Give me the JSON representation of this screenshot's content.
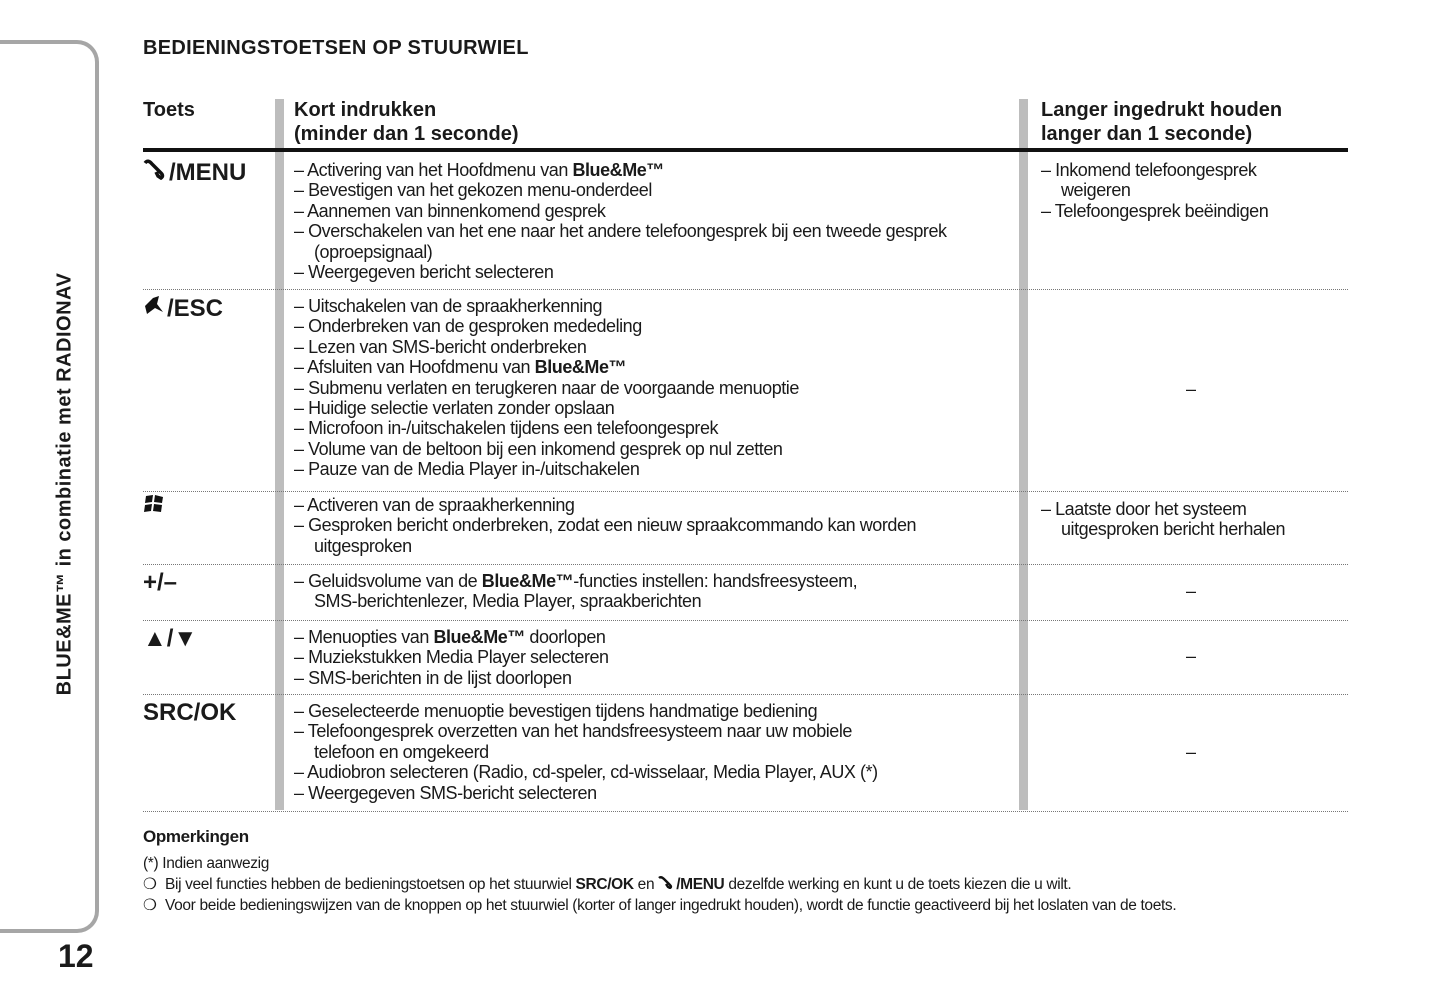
{
  "sidebar": {
    "section_title": "BLUE&ME™ in combinatie met RADIONAV",
    "page_number": "12"
  },
  "title": "BEDIENINGSTOETSEN OP STUURWIEL",
  "table": {
    "headers": {
      "key": "Toets",
      "short": "Kort indrukken\n(minder dan 1 seconde)",
      "long": "Langer ingedrukt houden\nlanger dan 1 seconde)"
    },
    "rows": [
      {
        "key": "/MENU",
        "key_icon": "phone-handset-icon",
        "short": [
          {
            "segs": [
              {
                "t": "– Activering van het Hoofdmenu van "
              },
              {
                "t": "Blue&Me™",
                "b": true
              }
            ]
          },
          {
            "segs": [
              {
                "t": "– Bevestigen van het gekozen menu-onderdeel"
              }
            ]
          },
          {
            "segs": [
              {
                "t": "– Aannemen van binnenkomend gesprek"
              }
            ]
          },
          {
            "segs": [
              {
                "t": "– Overschakelen van het ene naar het andere telefoongesprek bij een tweede gesprek"
              }
            ]
          },
          {
            "cont": true,
            "segs": [
              {
                "t": "(oproepsignaal)"
              }
            ]
          },
          {
            "segs": [
              {
                "t": "– Weergegeven bericht selecteren"
              }
            ]
          }
        ],
        "long": [
          {
            "segs": [
              {
                "t": "– Inkomend telefoongesprek"
              }
            ]
          },
          {
            "cont": true,
            "segs": [
              {
                "t": "weigeren"
              }
            ]
          },
          {
            "segs": [
              {
                "t": "– Telefoongesprek beëindigen"
              }
            ]
          }
        ]
      },
      {
        "key": "/ESC",
        "key_icon": "mute-mic-icon",
        "short": [
          {
            "segs": [
              {
                "t": "– Uitschakelen van de spraakherkenning"
              }
            ]
          },
          {
            "segs": [
              {
                "t": "– Onderbreken van de gesproken mededeling"
              }
            ]
          },
          {
            "segs": [
              {
                "t": "– Lezen van SMS-bericht onderbreken"
              }
            ]
          },
          {
            "segs": [
              {
                "t": "– Afsluiten van Hoofdmenu van "
              },
              {
                "t": "Blue&Me™",
                "b": true
              }
            ]
          },
          {
            "segs": [
              {
                "t": "– Submenu verlaten en terugkeren naar de voorgaande menuoptie"
              }
            ]
          },
          {
            "segs": [
              {
                "t": "– Huidige selectie verlaten zonder opslaan"
              }
            ]
          },
          {
            "segs": [
              {
                "t": "– Microfoon in-/uitschakelen tijdens een telefoongesprek"
              }
            ]
          },
          {
            "segs": [
              {
                "t": "– Volume van de beltoon bij een inkomend gesprek op nul zetten"
              }
            ]
          },
          {
            "segs": [
              {
                "t": "– Pauze van de Media Player in-/uitschakelen"
              }
            ]
          }
        ],
        "long_dash": "–"
      },
      {
        "key": "",
        "key_icon": "voice-recognition-icon",
        "short": [
          {
            "segs": [
              {
                "t": "– Activeren van de spraakherkenning"
              }
            ]
          },
          {
            "segs": [
              {
                "t": "– Gesproken bericht onderbreken, zodat een nieuw spraakcommando kan worden"
              }
            ]
          },
          {
            "cont": true,
            "segs": [
              {
                "t": "uitgesproken"
              }
            ]
          }
        ],
        "long": [
          {
            "segs": [
              {
                "t": "– Laatste door het systeem"
              }
            ]
          },
          {
            "cont": true,
            "segs": [
              {
                "t": "uitgesproken bericht herhalen"
              }
            ]
          }
        ]
      },
      {
        "key": "+/–",
        "short": [
          {
            "segs": [
              {
                "t": "– Geluidsvolume van de "
              },
              {
                "t": "Blue&Me™",
                "b": true
              },
              {
                "t": "-functies instellen: handsfreesysteem,"
              }
            ]
          },
          {
            "cont": true,
            "segs": [
              {
                "t": "SMS-berichtenlezer, Media Player, spraakberichten"
              }
            ]
          }
        ],
        "long_dash": "–"
      },
      {
        "key": "▲/▼",
        "short": [
          {
            "segs": [
              {
                "t": "– Menuopties van "
              },
              {
                "t": "Blue&Me™",
                "b": true
              },
              {
                "t": " doorlopen"
              }
            ]
          },
          {
            "segs": [
              {
                "t": "– Muziekstukken Media Player selecteren"
              }
            ]
          },
          {
            "segs": [
              {
                "t": "– SMS-berichten in de lijst doorlopen"
              }
            ]
          }
        ],
        "long_dash": "–"
      },
      {
        "key": "SRC/OK",
        "short": [
          {
            "segs": [
              {
                "t": "– Geselecteerde menuoptie bevestigen tijdens handmatige bediening"
              }
            ]
          },
          {
            "segs": [
              {
                "t": "– Telefoongesprek overzetten van het handsfreesysteem naar uw mobiele"
              }
            ]
          },
          {
            "cont": true,
            "segs": [
              {
                "t": "telefoon en omgekeerd"
              }
            ]
          },
          {
            "segs": [
              {
                "t": "– Audiobron selecteren (Radio, cd-speler, cd-wisselaar, Media Player, AUX (*)"
              }
            ]
          },
          {
            "segs": [
              {
                "t": "– Weergegeven SMS-bericht selecteren"
              }
            ]
          }
        ],
        "long_dash": "–"
      }
    ]
  },
  "notes": {
    "heading": "Opmerkingen",
    "footnote": "(*) Indien aanwezig",
    "bullet_symbol": "❍",
    "bullet1": {
      "a": "Bij veel functies hebben de bedieningstoetsen op het stuurwiel ",
      "b1": "SRC/OK",
      "c": " en ",
      "b2": "/MENU",
      "d": " dezelfde werking en kunt u de toets kiezen die u wilt."
    },
    "bullet2": "Voor beide bedieningswijzen van de knoppen op het stuurwiel (korter of langer ingedrukt houden), wordt de functie geactiveerd bij het loslaten van de toets."
  }
}
